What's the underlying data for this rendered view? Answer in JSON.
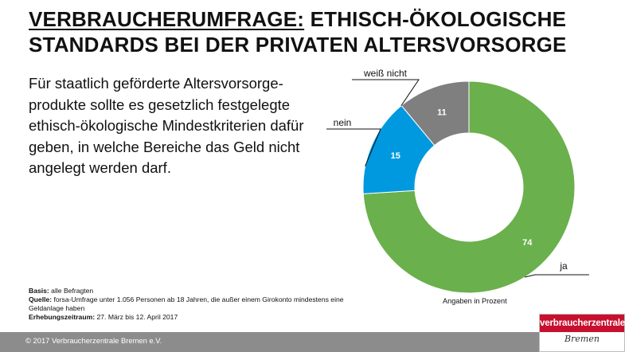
{
  "header": {
    "title_part1": "VERBRAUCHERUMFRAGE:",
    "title_part2": " ETHISCH-ÖKOLOGISCHE",
    "title_line2": "STANDARDS BEI DER PRIVATEN ALTERSVORSORGE"
  },
  "statement": "Für staatlich geförderte Altersvorsorge-produkte sollte es gesetzlich festgelegte ethisch-ökologische Mindestkriterien dafür geben, in welche Bereiche das Geld nicht angelegt werden darf.",
  "chart_data": {
    "type": "pie",
    "donut": true,
    "categories": [
      "ja",
      "nein",
      "weiß nicht"
    ],
    "values": [
      74,
      15,
      11
    ],
    "colors": [
      "#6ab04c",
      "#0099e0",
      "#7f7f7f"
    ],
    "unit_note": "Angaben in Prozent"
  },
  "notes": {
    "basis_label": "Basis:",
    "basis_value": " alle Befragten",
    "quelle_label": "Quelle:",
    "quelle_value": " forsa-Umfrage unter 1.056 Personen ab 18 Jahren, die außer einem Girokonto mindestens eine Geldanlage haben",
    "zeitraum_label": "Erhebungszeitraum:",
    "zeitraum_value": "  27. März bis 12. April 2017"
  },
  "footer": {
    "copyright": "© 2017 Verbraucherzentrale Bremen e.V."
  },
  "logo": {
    "name": "verbraucherzentrale",
    "city": "Bremen"
  }
}
